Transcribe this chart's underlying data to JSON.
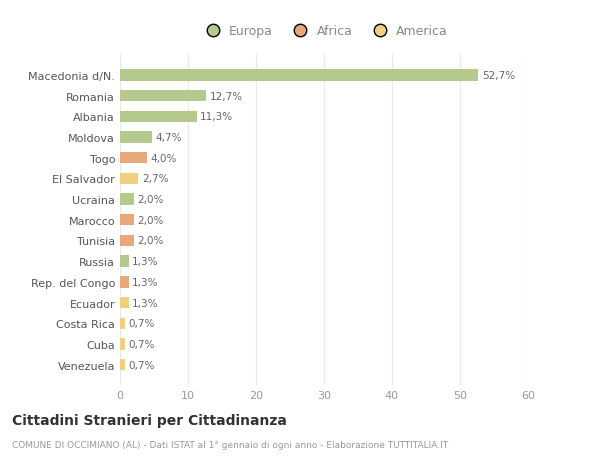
{
  "categories": [
    "Macedonia d/N.",
    "Romania",
    "Albania",
    "Moldova",
    "Togo",
    "El Salvador",
    "Ucraina",
    "Marocco",
    "Tunisia",
    "Russia",
    "Rep. del Congo",
    "Ecuador",
    "Costa Rica",
    "Cuba",
    "Venezuela"
  ],
  "values": [
    52.7,
    12.7,
    11.3,
    4.7,
    4.0,
    2.7,
    2.0,
    2.0,
    2.0,
    1.3,
    1.3,
    1.3,
    0.7,
    0.7,
    0.7
  ],
  "labels": [
    "52,7%",
    "12,7%",
    "11,3%",
    "4,7%",
    "4,0%",
    "2,7%",
    "2,0%",
    "2,0%",
    "2,0%",
    "1,3%",
    "1,3%",
    "1,3%",
    "0,7%",
    "0,7%",
    "0,7%"
  ],
  "continent": [
    "Europa",
    "Europa",
    "Europa",
    "Europa",
    "Africa",
    "America",
    "Europa",
    "Africa",
    "Africa",
    "Europa",
    "Africa",
    "America",
    "America",
    "America",
    "America"
  ],
  "colors": {
    "Europa": "#b5c98e",
    "Africa": "#e8a87c",
    "America": "#f0d080"
  },
  "xlim": [
    0,
    60
  ],
  "xticks": [
    0,
    10,
    20,
    30,
    40,
    50,
    60
  ],
  "title": "Cittadini Stranieri per Cittadinanza",
  "subtitle": "COMUNE DI OCCIMIANO (AL) - Dati ISTAT al 1° gennaio di ogni anno - Elaborazione TUTTITALIA.IT",
  "background_color": "#ffffff",
  "grid_color": "#e8e8e8"
}
